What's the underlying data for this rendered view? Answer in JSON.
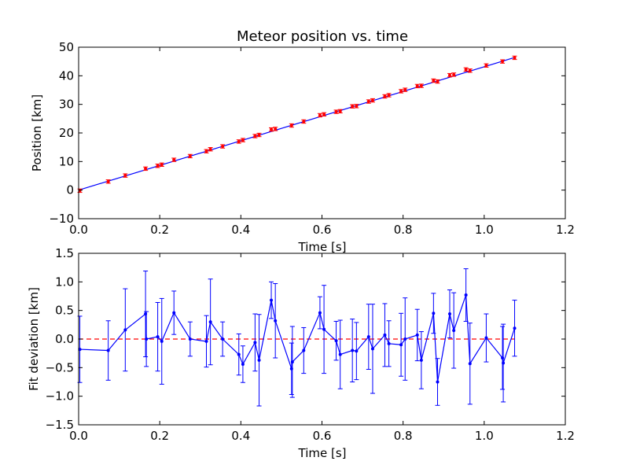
{
  "chart_data": [
    {
      "type": "scatter",
      "title": "Meteor position vs. time",
      "xlabel": "Time [s]",
      "ylabel": "Position [km]",
      "xlim": [
        0.0,
        1.2
      ],
      "ylim": [
        -10,
        50
      ],
      "xticks": [
        "0.0",
        "0.2",
        "0.4",
        "0.6",
        "0.8",
        "1.0",
        "1.2"
      ],
      "yticks": [
        "−10",
        "0",
        "10",
        "20",
        "30",
        "40",
        "50"
      ],
      "grid": false,
      "colors": {
        "points": "#ff0000",
        "errorbars": "#ff0000",
        "fit": "#0000ff"
      },
      "fit_line": {
        "x": [
          0.0,
          1.075
        ],
        "y": [
          0.0,
          46.4
        ]
      },
      "series": [
        {
          "x": [
            0.003,
            0.073,
            0.115,
            0.165,
            0.195,
            0.205,
            0.235,
            0.275,
            0.315,
            0.325,
            0.355,
            0.395,
            0.405,
            0.435,
            0.445,
            0.475,
            0.485,
            0.525,
            0.555,
            0.595,
            0.605,
            0.635,
            0.645,
            0.675,
            0.685,
            0.715,
            0.725,
            0.755,
            0.765,
            0.795,
            0.805,
            0.835,
            0.845,
            0.875,
            0.885,
            0.915,
            0.925,
            0.955,
            0.965,
            1.005,
            1.045,
            1.075
          ],
          "y": [
            -0.2,
            3.0,
            5.1,
            7.5,
            8.5,
            8.9,
            10.6,
            11.9,
            13.6,
            14.3,
            15.3,
            17.0,
            17.5,
            18.9,
            19.3,
            21.2,
            21.4,
            22.6,
            24.0,
            26.2,
            26.5,
            27.4,
            27.6,
            29.3,
            29.4,
            31.0,
            31.4,
            32.8,
            33.2,
            34.6,
            35.1,
            36.4,
            36.5,
            38.3,
            38.0,
            40.2,
            40.4,
            42.2,
            41.8,
            43.6,
            45.0,
            46.3
          ],
          "yerr": 0.6
        }
      ]
    },
    {
      "type": "line",
      "xlabel": "Time [s]",
      "ylabel": "Fit deviation [km]",
      "xlim": [
        0.0,
        1.2
      ],
      "ylim": [
        -1.5,
        1.5
      ],
      "xticks": [
        "0.0",
        "0.2",
        "0.4",
        "0.6",
        "0.8",
        "1.0",
        "1.2"
      ],
      "yticks": [
        "−1.5",
        "−1.0",
        "−0.5",
        "0.0",
        "0.5",
        "1.0",
        "1.5"
      ],
      "grid": false,
      "colors": {
        "line": "#0000ff",
        "zero_line": "#ff0000"
      },
      "zero_line": 0.0,
      "series": [
        {
          "x": [
            0.003,
            0.073,
            0.115,
            0.165,
            0.167,
            0.195,
            0.205,
            0.235,
            0.275,
            0.315,
            0.325,
            0.355,
            0.395,
            0.405,
            0.435,
            0.445,
            0.475,
            0.485,
            0.525,
            0.527,
            0.555,
            0.595,
            0.605,
            0.635,
            0.645,
            0.675,
            0.685,
            0.715,
            0.725,
            0.755,
            0.765,
            0.795,
            0.805,
            0.835,
            0.845,
            0.875,
            0.885,
            0.915,
            0.925,
            0.955,
            0.965,
            1.005,
            1.045,
            1.047,
            1.075
          ],
          "y": [
            -0.18,
            -0.2,
            0.16,
            0.44,
            0.0,
            0.04,
            -0.04,
            0.46,
            0.0,
            -0.04,
            0.3,
            0.0,
            -0.27,
            -0.44,
            -0.06,
            -0.37,
            0.68,
            0.32,
            -0.52,
            -0.4,
            -0.2,
            0.46,
            0.17,
            -0.03,
            -0.27,
            -0.2,
            -0.21,
            0.04,
            -0.17,
            0.07,
            -0.08,
            -0.1,
            0.0,
            0.07,
            -0.37,
            0.45,
            -0.75,
            0.44,
            0.15,
            0.77,
            -0.43,
            0.02,
            -0.33,
            -0.42,
            0.19
          ],
          "yerr": [
            0.58,
            0.52,
            0.72,
            0.75,
            0.48,
            0.6,
            0.75,
            0.38,
            0.3,
            0.45,
            0.75,
            0.3,
            0.36,
            0.32,
            0.5,
            0.8,
            0.32,
            0.65,
            0.45,
            0.62,
            0.4,
            0.28,
            0.77,
            0.34,
            0.6,
            0.55,
            0.5,
            0.57,
            0.78,
            0.55,
            0.4,
            0.55,
            0.72,
            0.45,
            0.5,
            0.35,
            0.41,
            0.42,
            0.66,
            0.46,
            0.71,
            0.42,
            0.55,
            0.68,
            0.49
          ]
        }
      ]
    }
  ]
}
